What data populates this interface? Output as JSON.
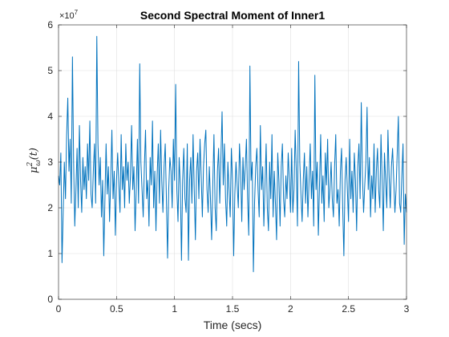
{
  "chart_data": {
    "type": "line",
    "title": "Second Spectral Moment of Inner1",
    "xlabel": "Time (secs)",
    "ylabel_base": "μ",
    "ylabel_sup": "2",
    "ylabel_sub": "ω",
    "ylabel_arg": "(t)",
    "y_exponent_label": "×10",
    "y_exponent_value": "7",
    "xlim": [
      0,
      3
    ],
    "ylim": [
      0,
      6
    ],
    "xticks": [
      0,
      0.5,
      1,
      1.5,
      2,
      2.5,
      3
    ],
    "xtick_labels": [
      "0",
      "0.5",
      "1",
      "1.5",
      "2",
      "2.5",
      "3"
    ],
    "yticks": [
      0,
      1,
      2,
      3,
      4,
      5,
      6
    ],
    "ytick_labels": [
      "0",
      "1",
      "2",
      "3",
      "4",
      "5",
      "6"
    ],
    "grid": true,
    "line_color": "#0072BD",
    "series": [
      {
        "x": [
          0.0,
          0.01,
          0.02,
          0.03,
          0.04,
          0.05,
          0.06,
          0.07,
          0.08,
          0.09,
          0.1,
          0.11,
          0.12,
          0.13,
          0.14,
          0.15,
          0.16,
          0.17,
          0.18,
          0.19,
          0.2,
          0.21,
          0.22,
          0.23,
          0.24,
          0.25,
          0.26,
          0.27,
          0.28,
          0.29,
          0.3,
          0.31,
          0.32,
          0.33,
          0.34,
          0.35,
          0.36,
          0.37,
          0.38,
          0.39,
          0.4,
          0.41,
          0.42,
          0.43,
          0.44,
          0.45,
          0.46,
          0.47,
          0.48,
          0.49,
          0.5,
          0.51,
          0.52,
          0.53,
          0.54,
          0.55,
          0.56,
          0.57,
          0.58,
          0.59,
          0.6,
          0.61,
          0.62,
          0.63,
          0.64,
          0.65,
          0.66,
          0.67,
          0.68,
          0.69,
          0.7,
          0.71,
          0.72,
          0.73,
          0.74,
          0.75,
          0.76,
          0.77,
          0.78,
          0.79,
          0.8,
          0.81,
          0.82,
          0.83,
          0.84,
          0.85,
          0.86,
          0.87,
          0.88,
          0.89,
          0.9,
          0.91,
          0.92,
          0.93,
          0.94,
          0.95,
          0.96,
          0.97,
          0.98,
          0.99,
          1.0,
          1.01,
          1.02,
          1.03,
          1.04,
          1.05,
          1.06,
          1.07,
          1.08,
          1.09,
          1.1,
          1.11,
          1.12,
          1.13,
          1.14,
          1.15,
          1.16,
          1.17,
          1.18,
          1.19,
          1.2,
          1.21,
          1.22,
          1.23,
          1.24,
          1.25,
          1.26,
          1.27,
          1.28,
          1.29,
          1.3,
          1.31,
          1.32,
          1.33,
          1.34,
          1.35,
          1.36,
          1.37,
          1.38,
          1.39,
          1.4,
          1.41,
          1.42,
          1.43,
          1.44,
          1.45,
          1.46,
          1.47,
          1.48,
          1.49,
          1.5,
          1.51,
          1.52,
          1.53,
          1.54,
          1.55,
          1.56,
          1.57,
          1.58,
          1.59,
          1.6,
          1.61,
          1.62,
          1.63,
          1.64,
          1.65,
          1.66,
          1.67,
          1.68,
          1.69,
          1.7,
          1.71,
          1.72,
          1.73,
          1.74,
          1.75,
          1.76,
          1.77,
          1.78,
          1.79,
          1.8,
          1.81,
          1.82,
          1.83,
          1.84,
          1.85,
          1.86,
          1.87,
          1.88,
          1.89,
          1.9,
          1.91,
          1.92,
          1.93,
          1.94,
          1.95,
          1.96,
          1.97,
          1.98,
          1.99,
          2.0,
          2.01,
          2.02,
          2.03,
          2.04,
          2.05,
          2.06,
          2.07,
          2.08,
          2.09,
          2.1,
          2.11,
          2.12,
          2.13,
          2.14,
          2.15,
          2.16,
          2.17,
          2.18,
          2.19,
          2.2,
          2.21,
          2.22,
          2.23,
          2.24,
          2.25,
          2.26,
          2.27,
          2.28,
          2.29,
          2.3,
          2.31,
          2.32,
          2.33,
          2.34,
          2.35,
          2.36,
          2.37,
          2.38,
          2.39,
          2.4,
          2.41,
          2.42,
          2.43,
          2.44,
          2.45,
          2.46,
          2.47,
          2.48,
          2.49,
          2.5,
          2.51,
          2.52,
          2.53,
          2.54,
          2.55,
          2.56,
          2.57,
          2.58,
          2.59,
          2.6,
          2.61,
          2.62,
          2.63,
          2.64,
          2.65,
          2.66,
          2.67,
          2.68,
          2.69,
          2.7,
          2.71,
          2.72,
          2.73,
          2.74,
          2.75,
          2.76,
          2.77,
          2.78,
          2.79,
          2.8,
          2.81,
          2.82,
          2.83,
          2.84,
          2.85,
          2.86,
          2.87,
          2.88,
          2.89,
          2.9,
          2.91,
          2.92,
          2.93,
          2.94,
          2.95,
          2.96,
          2.97,
          2.98,
          2.99,
          3.0
        ],
        "values": [
          2.7,
          2.5,
          3.2,
          0.8,
          1.9,
          3.0,
          2.2,
          3.6,
          4.4,
          2.8,
          3.5,
          2.1,
          5.3,
          3.0,
          1.6,
          2.4,
          3.3,
          2.0,
          3.8,
          2.6,
          1.9,
          3.1,
          2.4,
          2.9,
          2.2,
          3.4,
          2.6,
          3.9,
          2.3,
          2.0,
          2.8,
          3.4,
          2.1,
          5.75,
          3.4,
          2.5,
          3.1,
          1.8,
          2.6,
          0.95,
          2.2,
          3.4,
          2.3,
          2.9,
          1.7,
          2.6,
          3.7,
          2.2,
          2.8,
          1.4,
          2.6,
          3.2,
          2.5,
          1.9,
          3.6,
          2.4,
          2.9,
          2.0,
          3.4,
          2.6,
          3.0,
          2.1,
          2.7,
          3.8,
          2.4,
          2.9,
          1.5,
          2.4,
          3.5,
          2.1,
          5.15,
          3.0,
          2.4,
          1.8,
          2.9,
          3.7,
          2.2,
          2.6,
          1.6,
          3.1,
          2.5,
          3.9,
          2.0,
          2.8,
          1.5,
          2.7,
          3.4,
          2.1,
          3.7,
          2.6,
          1.9,
          2.9,
          3.4,
          2.2,
          0.9,
          2.4,
          3.1,
          2.8,
          2.0,
          3.5,
          2.6,
          4.7,
          2.4,
          1.7,
          3.1,
          2.5,
          0.85,
          2.6,
          3.3,
          2.2,
          1.9,
          3.4,
          0.85,
          2.6,
          3.1,
          2.1,
          3.6,
          2.4,
          1.3,
          2.8,
          3.2,
          2.2,
          3.5,
          2.7,
          1.8,
          2.9,
          3.4,
          3.7,
          2.4,
          1.9,
          2.9,
          2.2,
          1.3,
          2.5,
          3.6,
          2.0,
          1.5,
          2.8,
          3.3,
          2.1,
          3.1,
          4.1,
          2.5,
          3.4,
          2.2,
          1.6,
          3.0,
          2.4,
          1.8,
          3.3,
          2.6,
          0.95,
          2.3,
          3.0,
          2.5,
          2.0,
          3.4,
          2.8,
          1.7,
          3.1,
          2.4,
          2.9,
          3.5,
          2.2,
          1.4,
          5.1,
          2.6,
          3.0,
          0.6,
          2.1,
          2.9,
          3.3,
          2.4,
          1.8,
          3.8,
          2.4,
          2.9,
          1.6,
          2.5,
          3.4,
          2.0,
          1.5,
          3.0,
          2.2,
          3.6,
          1.8,
          2.8,
          2.1,
          1.3,
          3.2,
          2.6,
          1.6,
          2.9,
          3.4,
          2.2,
          1.8,
          2.7,
          2.2,
          3.2,
          2.6,
          1.9,
          3.3,
          1.9,
          2.4,
          3.7,
          2.8,
          1.6,
          5.2,
          3.0,
          2.3,
          1.7,
          2.6,
          3.2,
          2.1,
          2.9,
          1.8,
          2.6,
          3.4,
          2.2,
          2.8,
          1.6,
          4.9,
          2.4,
          3.0,
          1.4,
          2.5,
          3.6,
          2.1,
          2.7,
          1.7,
          3.2,
          2.5,
          3.5,
          2.0,
          2.4,
          3.0,
          2.2,
          1.8,
          2.9,
          3.6,
          2.1,
          2.4,
          1.6,
          2.8,
          3.3,
          2.0,
          0.95,
          2.6,
          3.1,
          2.4,
          1.7,
          3.5,
          2.2,
          2.8,
          1.9,
          3.2,
          2.6,
          1.5,
          2.9,
          3.4,
          2.2,
          4.3,
          2.7,
          1.9,
          2.5,
          3.0,
          4.2,
          2.4,
          3.1,
          1.8,
          2.7,
          2.2,
          3.4,
          1.9,
          2.8,
          3.3,
          2.4,
          2.0,
          3.6,
          2.6,
          1.5,
          3.2,
          2.6,
          2.0,
          3.7,
          2.7,
          2.0,
          2.9,
          3.3,
          2.6,
          1.9,
          2.4,
          3.2,
          4.0,
          2.1,
          1.9,
          2.7,
          3.4,
          1.2,
          2.3,
          1.9
        ]
      }
    ]
  }
}
